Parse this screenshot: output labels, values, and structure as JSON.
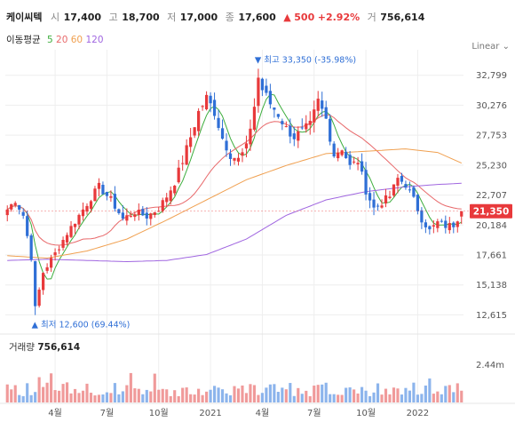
{
  "header": {
    "stock_name": "케이씨텍",
    "open_label": "시",
    "open_value": "17,400",
    "high_label": "고",
    "high_value": "18,700",
    "low_label": "저",
    "low_value": "17,000",
    "close_label": "종",
    "close_value": "17,600",
    "change_arrow": "▲",
    "change_value": "500",
    "change_pct": "+2.92%",
    "volume_label": "거",
    "volume_value": "756,614"
  },
  "ma_legend": {
    "title": "이동평균",
    "items": [
      {
        "label": "5",
        "color": "#3dad3d"
      },
      {
        "label": "20",
        "color": "#e8696b"
      },
      {
        "label": "60",
        "color": "#f0a050"
      },
      {
        "label": "120",
        "color": "#a066e0"
      }
    ]
  },
  "scale_control": {
    "label": "Linear",
    "icon": "chevron-down-icon"
  },
  "chart_data": {
    "type": "candlestick",
    "y_ticks": [
      "32,799",
      "30,276",
      "27,753",
      "25,230",
      "22,707",
      "20,184",
      "17,661",
      "15,138",
      "12,615"
    ],
    "y_tick_values": [
      32799,
      30276,
      27753,
      25230,
      22707,
      20184,
      17661,
      15138,
      12615
    ],
    "ylim": [
      11300,
      34200
    ],
    "x_ticks": [
      "4월",
      "7월",
      "10월",
      "2021",
      "4월",
      "7월",
      "10월",
      "2022"
    ],
    "x_tick_positions": [
      12,
      25,
      38,
      51,
      64,
      77,
      90,
      103
    ],
    "n_bars": 115,
    "current_price": {
      "label": "21,350",
      "value": 21350
    },
    "max_marker": {
      "text": "최고 33,350 (-35.98%)",
      "bar": 63,
      "value": 33350
    },
    "min_marker": {
      "text": "최저 12,600 (69.44%)",
      "bar": 7,
      "value": 12600
    },
    "close_anchors": [
      [
        0,
        21500
      ],
      [
        2,
        22300
      ],
      [
        4,
        21000
      ],
      [
        6,
        17500
      ],
      [
        7,
        13200
      ],
      [
        9,
        16200
      ],
      [
        12,
        17800
      ],
      [
        15,
        19500
      ],
      [
        18,
        21000
      ],
      [
        21,
        22500
      ],
      [
        23,
        23400
      ],
      [
        26,
        22300
      ],
      [
        29,
        20700
      ],
      [
        32,
        21300
      ],
      [
        35,
        20900
      ],
      [
        38,
        21600
      ],
      [
        40,
        22600
      ],
      [
        42,
        23800
      ],
      [
        44,
        25600
      ],
      [
        46,
        27600
      ],
      [
        48,
        29700
      ],
      [
        50,
        30900
      ],
      [
        52,
        29700
      ],
      [
        54,
        27500
      ],
      [
        56,
        26100
      ],
      [
        58,
        25700
      ],
      [
        60,
        26700
      ],
      [
        62,
        30200
      ],
      [
        63,
        32600
      ],
      [
        64,
        31600
      ],
      [
        66,
        30400
      ],
      [
        68,
        29500
      ],
      [
        70,
        28300
      ],
      [
        72,
        27600
      ],
      [
        74,
        28100
      ],
      [
        76,
        28600
      ],
      [
        78,
        30600
      ],
      [
        80,
        29100
      ],
      [
        82,
        26100
      ],
      [
        84,
        26700
      ],
      [
        86,
        25100
      ],
      [
        88,
        25600
      ],
      [
        90,
        23100
      ],
      [
        92,
        21600
      ],
      [
        94,
        22100
      ],
      [
        96,
        22600
      ],
      [
        98,
        24100
      ],
      [
        100,
        23600
      ],
      [
        102,
        22300
      ],
      [
        104,
        20700
      ],
      [
        106,
        19700
      ],
      [
        108,
        20400
      ],
      [
        110,
        20100
      ],
      [
        112,
        20200
      ],
      [
        114,
        21350
      ]
    ],
    "ma": [
      {
        "period": "5",
        "color": "#3dad3d"
      },
      {
        "period": "20",
        "color": "#e8696b"
      },
      {
        "period": "60",
        "color": "#f0a050",
        "anchors": [
          [
            0,
            17600
          ],
          [
            10,
            17400
          ],
          [
            20,
            18000
          ],
          [
            30,
            19000
          ],
          [
            40,
            20600
          ],
          [
            50,
            22300
          ],
          [
            60,
            24000
          ],
          [
            70,
            25200
          ],
          [
            80,
            26200
          ],
          [
            90,
            26400
          ],
          [
            100,
            26600
          ],
          [
            108,
            26300
          ],
          [
            114,
            25400
          ]
        ]
      },
      {
        "period": "120",
        "color": "#a066e0",
        "anchors": [
          [
            0,
            17200
          ],
          [
            10,
            17300
          ],
          [
            20,
            17200
          ],
          [
            30,
            17100
          ],
          [
            40,
            17200
          ],
          [
            50,
            17700
          ],
          [
            60,
            19000
          ],
          [
            70,
            21000
          ],
          [
            80,
            22300
          ],
          [
            90,
            23000
          ],
          [
            100,
            23400
          ],
          [
            108,
            23600
          ],
          [
            114,
            23700
          ]
        ]
      }
    ],
    "volume": {
      "label": "거래량",
      "value": "756,614",
      "y_tick": "2.44m",
      "y_tick_value": 2440000,
      "ylim": [
        0,
        3600000
      ]
    },
    "colors": {
      "up": "#e8393b",
      "down": "#2f6fd6",
      "vol_up": "#f09a9a",
      "vol_down": "#8cb4ec",
      "grid": "#eeeeee"
    }
  }
}
